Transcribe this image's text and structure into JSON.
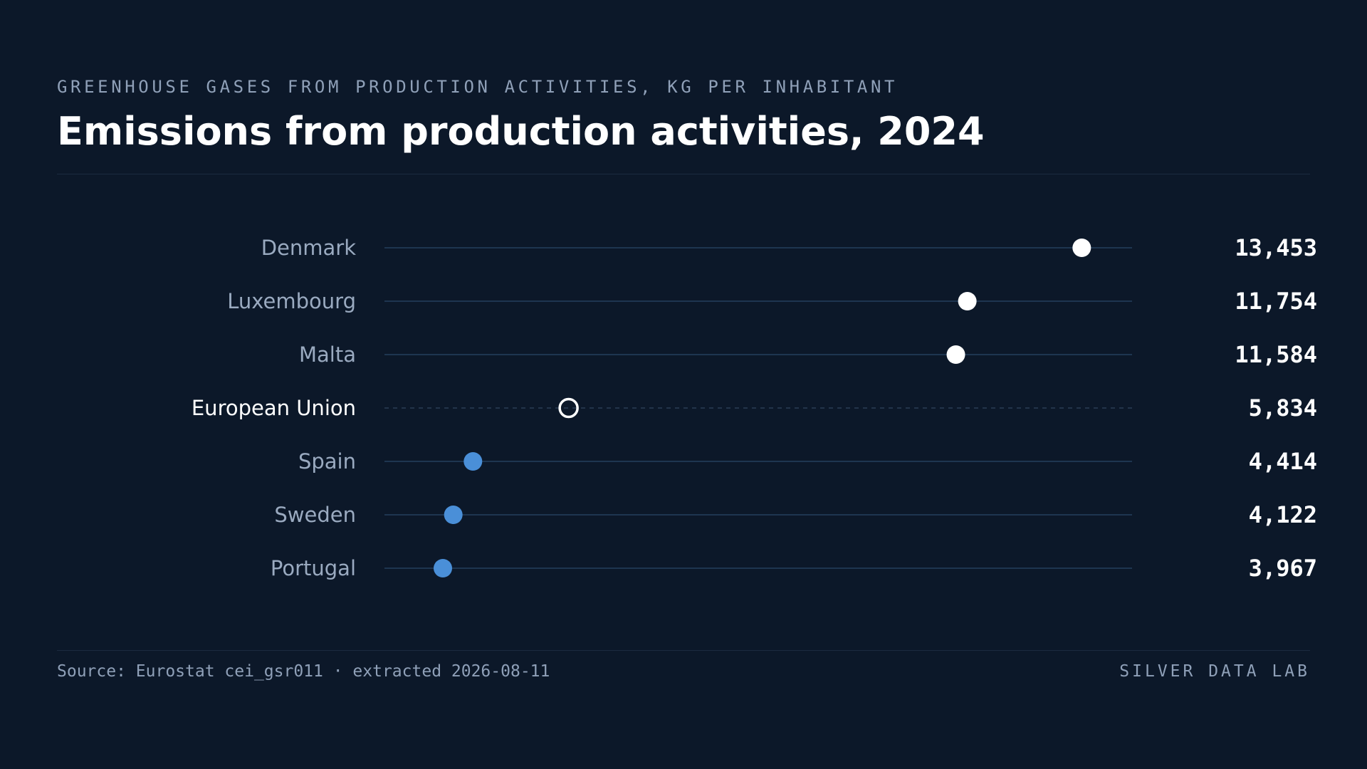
{
  "header": {
    "kicker": "GREENHOUSE GASES FROM PRODUCTION ACTIVITIES, KG PER INHABITANT",
    "title": "Emissions from production activities, 2024"
  },
  "footer": {
    "source": "Source: Eurostat cei_gsr011 · extracted 2026-08-11",
    "brand": "SILVER DATA LAB"
  },
  "chart_data": {
    "type": "scatter",
    "title": "Emissions from production activities, 2024",
    "subtitle": "GREENHOUSE GASES FROM PRODUCTION ACTIVITIES, KG PER INHABITANT",
    "xlim": [
      3100,
      14200
    ],
    "grid": false,
    "legend": "none",
    "colors": {
      "background": "#0c1829",
      "top": "#ffffff",
      "reference": "#ffffff",
      "bottom": "#4a8fd8",
      "track": "#1e3550",
      "label": "#9aaac0",
      "reference_label": "#ffffff",
      "value": "#ffffff"
    },
    "points": [
      {
        "label": "Denmark",
        "value": 13453,
        "value_label": "13,453",
        "group": "top"
      },
      {
        "label": "Luxembourg",
        "value": 11754,
        "value_label": "11,754",
        "group": "top"
      },
      {
        "label": "Malta",
        "value": 11584,
        "value_label": "11,584",
        "group": "top"
      },
      {
        "label": "European Union",
        "value": 5834,
        "value_label": "5,834",
        "group": "reference"
      },
      {
        "label": "Spain",
        "value": 4414,
        "value_label": "4,414",
        "group": "bottom"
      },
      {
        "label": "Sweden",
        "value": 4122,
        "value_label": "4,122",
        "group": "bottom"
      },
      {
        "label": "Portugal",
        "value": 3967,
        "value_label": "3,967",
        "group": "bottom"
      }
    ]
  }
}
